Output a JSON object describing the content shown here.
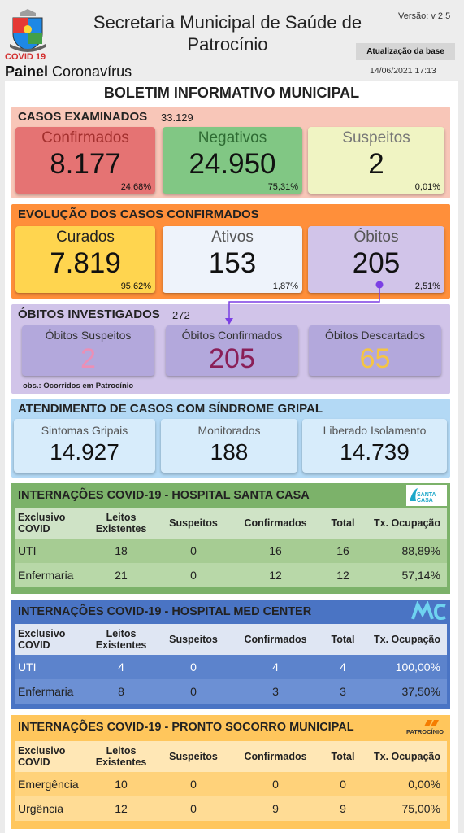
{
  "header": {
    "title": "Secretaria Municipal de Saúde de Patrocínio",
    "version": "Versão: v 2.5",
    "update_button": "Atualização da base",
    "update_date": "14/06/2021 17:13",
    "covid_tag": "COVID 19",
    "painel_bold": "Painel",
    "painel_rest": " Coronavírus"
  },
  "bulletin_title": "BOLETIM INFORMATIVO MUNICIPAL",
  "examined": {
    "title": "CASOS EXAMINADOS",
    "total": "33.129",
    "confirmed": {
      "label": "Confirmados",
      "value": "8.177",
      "pct": "24,68%"
    },
    "negative": {
      "label": "Negativos",
      "value": "24.950",
      "pct": "75,31%"
    },
    "suspect": {
      "label": "Suspeitos",
      "value": "2",
      "pct": "0,01%"
    }
  },
  "evolution": {
    "title": "EVOLUÇÃO DOS CASOS CONFIRMADOS",
    "cured": {
      "label": "Curados",
      "value": "7.819",
      "pct": "95,62%"
    },
    "active": {
      "label": "Ativos",
      "value": "153",
      "pct": "1,87%"
    },
    "deaths": {
      "label": "Óbitos",
      "value": "205",
      "pct": "2,51%"
    }
  },
  "investigated": {
    "title": "ÓBITOS INVESTIGADOS",
    "total": "272",
    "suspect": {
      "label": "Óbitos Suspeitos",
      "value": "2"
    },
    "confirmed": {
      "label": "Óbitos Confirmados",
      "value": "205"
    },
    "discarded": {
      "label": "Óbitos Descartados",
      "value": "65"
    },
    "note": "obs.: Ocorridos em Patrocínio"
  },
  "flu": {
    "title": "ATENDIMENTO DE CASOS COM SÍNDROME GRIPAL",
    "symptoms": {
      "label": "Sintomas Gripais",
      "value": "14.927"
    },
    "monitored": {
      "label": "Monitorados",
      "value": "188"
    },
    "released": {
      "label": "Liberado Isolamento",
      "value": "14.739"
    }
  },
  "hospitals": [
    {
      "title": "INTERNAÇÕES COVID-19 - HOSPITAL SANTA CASA",
      "logo_text": "SANTA CASA",
      "headers": [
        "Exclusivo COVID",
        "Leitos Existentes",
        "Suspeitos",
        "Confirmados",
        "Total",
        "Tx. Ocupação"
      ],
      "rows": [
        [
          "UTI",
          "18",
          "0",
          "16",
          "16",
          "88,89%"
        ],
        [
          "Enfermaria",
          "21",
          "0",
          "12",
          "12",
          "57,14%"
        ]
      ]
    },
    {
      "title": "INTERNAÇÕES COVID-19 - HOSPITAL MED CENTER",
      "logo_text": "MC",
      "headers": [
        "Exclusivo COVID",
        "Leitos Existentes",
        "Suspeitos",
        "Confirmados",
        "Total",
        "Tx. Ocupação"
      ],
      "rows": [
        [
          "UTI",
          "4",
          "0",
          "4",
          "4",
          "100,00%"
        ],
        [
          "Enfermaria",
          "8",
          "0",
          "3",
          "3",
          "37,50%"
        ]
      ]
    },
    {
      "title": "INTERNAÇÕES COVID-19 - PRONTO SOCORRO MUNICIPAL",
      "logo_text": "PATROCÍNIO",
      "headers": [
        "Exclusivo COVID",
        "Leitos Existentes",
        "Suspeitos",
        "Confirmados",
        "Total",
        "Tx. Ocupação"
      ],
      "rows": [
        [
          "Emergência",
          "10",
          "0",
          "0",
          "0",
          "0,00%"
        ],
        [
          "Urgência",
          "12",
          "0",
          "9",
          "9",
          "75,00%"
        ]
      ]
    }
  ],
  "colors": {
    "confirmed_card": "#e57373",
    "negative_card": "#81c784",
    "suspect_card": "#f0f4c3",
    "cured_card": "#ffd54f",
    "evolution_bg": "#ff8f3a",
    "investigated_bg": "#d1c4e9",
    "flu_bg": "#b3d9f5",
    "santa_casa": "#7cb26a",
    "med_center": "#4a74c4",
    "pronto_socorro": "#ffc65c"
  }
}
